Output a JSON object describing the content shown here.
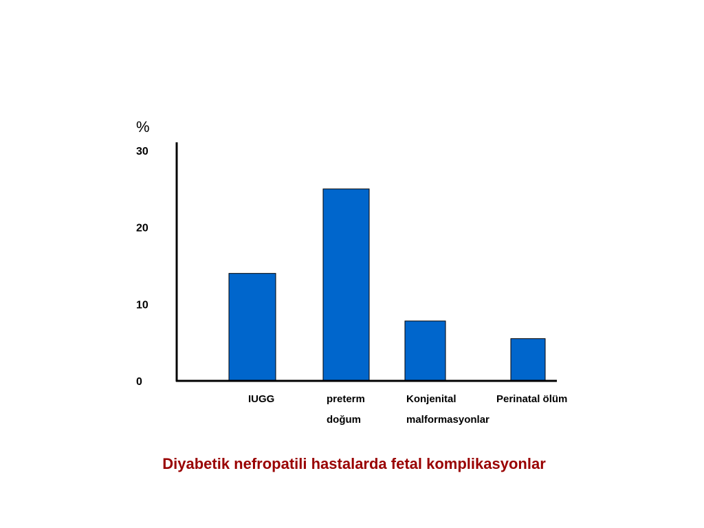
{
  "caption": "Diyabetik nefropatili hastalarda fetal komplikasyonlar",
  "colors": {
    "bar_fill": "#0066CC",
    "bar_stroke": "#000000",
    "axis": "#000000",
    "caption": "#990000"
  },
  "chart_data": {
    "type": "bar",
    "title": "",
    "xlabel": "",
    "ylabel": "%",
    "ylim": [
      0,
      30
    ],
    "yticks": [
      0,
      10,
      20,
      30
    ],
    "grid": false,
    "categories": [
      [
        "IUGG"
      ],
      [
        "preterm",
        "doğum"
      ],
      [
        "Konjenital",
        "malformasyonlar"
      ],
      [
        "Perinatal ölüm"
      ]
    ],
    "values": [
      14,
      25,
      7.8,
      5.5
    ]
  }
}
